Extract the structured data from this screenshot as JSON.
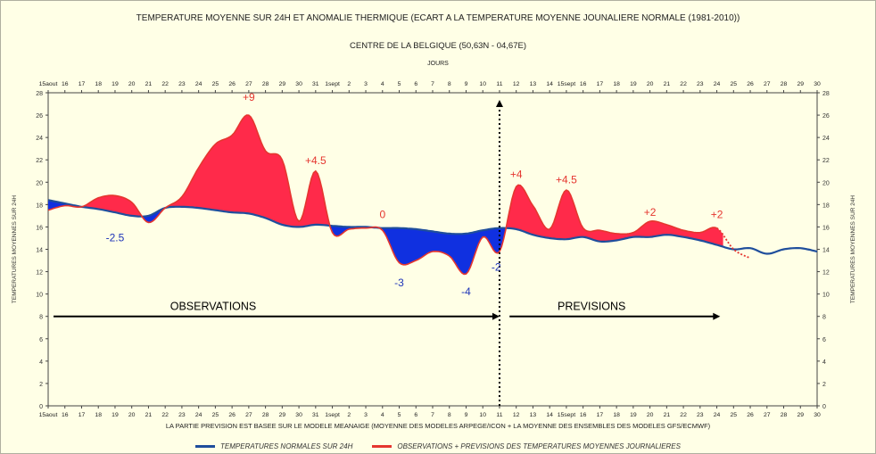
{
  "chart_data": {
    "type": "area",
    "title": "TEMPERATURE MOYENNE SUR 24H ET ANOMALIE THERMIQUE (ECART A LA TEMPERATURE MOYENNE JOUNALIERE NORMALE (1981-2010))",
    "subtitle": "CENTRE DE LA BELGIQUE (50,63N - 04,67E)",
    "xlabel": "JOURS",
    "ylabel": "TEMPERATURES MOYENNES SUR 24H",
    "ylim": [
      0,
      28
    ],
    "yticks": [
      0,
      2,
      4,
      6,
      8,
      10,
      12,
      14,
      16,
      18,
      20,
      22,
      24,
      26,
      28
    ],
    "grid": false,
    "x_tick_labels": [
      "15aout",
      "16",
      "17",
      "18",
      "19",
      "20",
      "21",
      "22",
      "23",
      "24",
      "25",
      "26",
      "27",
      "28",
      "29",
      "30",
      "31",
      "1sept",
      "2",
      "3",
      "4",
      "5",
      "6",
      "7",
      "8",
      "9",
      "10",
      "11",
      "12",
      "13",
      "14",
      "15sept",
      "16",
      "17",
      "18",
      "19",
      "20",
      "21",
      "22",
      "23",
      "24",
      "25",
      "26",
      "27",
      "28",
      "29",
      "30"
    ],
    "series": [
      {
        "name": "TEMPERATURES NORMALES SUR 24H",
        "color": "#1f4e9c",
        "x": [
          0,
          1,
          2,
          3,
          4,
          5,
          6,
          7,
          8,
          9,
          10,
          11,
          12,
          13,
          14,
          15,
          16,
          17,
          18,
          19,
          20,
          21,
          22,
          23,
          24,
          25,
          26,
          27,
          28,
          29,
          30,
          31,
          32,
          33,
          34,
          35,
          36,
          37,
          38,
          39,
          40,
          41,
          42,
          43,
          44,
          45,
          46
        ],
        "values": [
          18.4,
          18.1,
          17.8,
          17.6,
          17.3,
          17.0,
          17.0,
          17.7,
          17.8,
          17.7,
          17.5,
          17.3,
          17.2,
          16.8,
          16.2,
          16.0,
          16.2,
          16.1,
          16.0,
          16.0,
          15.9,
          15.9,
          15.8,
          15.6,
          15.4,
          15.4,
          15.7,
          15.9,
          15.8,
          15.3,
          15.0,
          14.9,
          15.1,
          14.7,
          14.8,
          15.1,
          15.1,
          15.3,
          15.1,
          14.8,
          14.4,
          14.0,
          14.1,
          13.6,
          14.0,
          14.1,
          13.8
        ]
      },
      {
        "name": "OBSERVATIONS + PREVISIONS DES TEMPERATURES MOYENNES JOURNALIERES",
        "color": "#e5362f",
        "x": [
          0,
          1,
          2,
          3,
          4,
          5,
          6,
          7,
          8,
          9,
          10,
          11,
          12,
          13,
          14,
          15,
          16,
          17,
          18,
          19,
          20,
          21,
          22,
          23,
          24,
          25,
          26,
          27,
          28,
          29,
          30,
          31,
          32,
          33,
          34,
          35,
          36,
          37,
          38,
          39,
          40,
          41,
          42
        ],
        "values": [
          17.5,
          17.9,
          17.8,
          18.6,
          18.8,
          18.2,
          16.4,
          17.7,
          18.7,
          21.3,
          23.4,
          24.2,
          26.0,
          22.8,
          22.0,
          16.5,
          21.0,
          15.5,
          15.8,
          15.9,
          15.7,
          12.8,
          13.0,
          13.8,
          13.4,
          11.8,
          15.1,
          13.8,
          19.6,
          17.9,
          15.8,
          19.3,
          15.9,
          15.7,
          15.4,
          15.5,
          16.5,
          16.2,
          15.7,
          15.5,
          15.9,
          14.0,
          13.2
        ],
        "forecast_from_x": 27,
        "forecast_dotted_from_x": 40
      }
    ],
    "annotations": [
      {
        "text": "+9",
        "x": 12,
        "y": 27.3,
        "color": "#e5362f"
      },
      {
        "text": "+4.5",
        "x": 16,
        "y": 21.6,
        "color": "#e5362f"
      },
      {
        "text": "0",
        "x": 20,
        "y": 16.8,
        "color": "#e5362f"
      },
      {
        "text": "+4",
        "x": 28,
        "y": 20.4,
        "color": "#e5362f"
      },
      {
        "text": "+4.5",
        "x": 31,
        "y": 19.9,
        "color": "#e5362f"
      },
      {
        "text": "+2",
        "x": 36,
        "y": 17.0,
        "color": "#e5362f"
      },
      {
        "text": "+2",
        "x": 40,
        "y": 16.8,
        "color": "#e5362f"
      },
      {
        "text": "-2.5",
        "x": 4,
        "y": 14.7,
        "color": "#1f35b8"
      },
      {
        "text": "-3",
        "x": 21,
        "y": 10.7,
        "color": "#1f35b8"
      },
      {
        "text": "-4",
        "x": 25,
        "y": 9.9,
        "color": "#1f35b8"
      },
      {
        "text": "-2",
        "x": 26.8,
        "y": 12.1,
        "color": "#1f35b8"
      }
    ],
    "arrows": [
      {
        "label": "OBSERVATIONS",
        "from_x": 0,
        "to_x": 27
      },
      {
        "label": "PREVISIONS",
        "from_x": 27.6,
        "to_x": 40.2
      }
    ],
    "vertical_marker_x": 27,
    "positive_anomaly_color": "#ff2a4a",
    "negative_anomaly_color": "#1030e0"
  },
  "footnote": "LA PARTIE PREVISION EST BASEE SUR LE MODELE MEANAIGE (MOYENNE DES MODELES ARPEGE/ICON + LA MOYENNE DES ENSEMBLES DES MODELES GFS/ECMWF)"
}
